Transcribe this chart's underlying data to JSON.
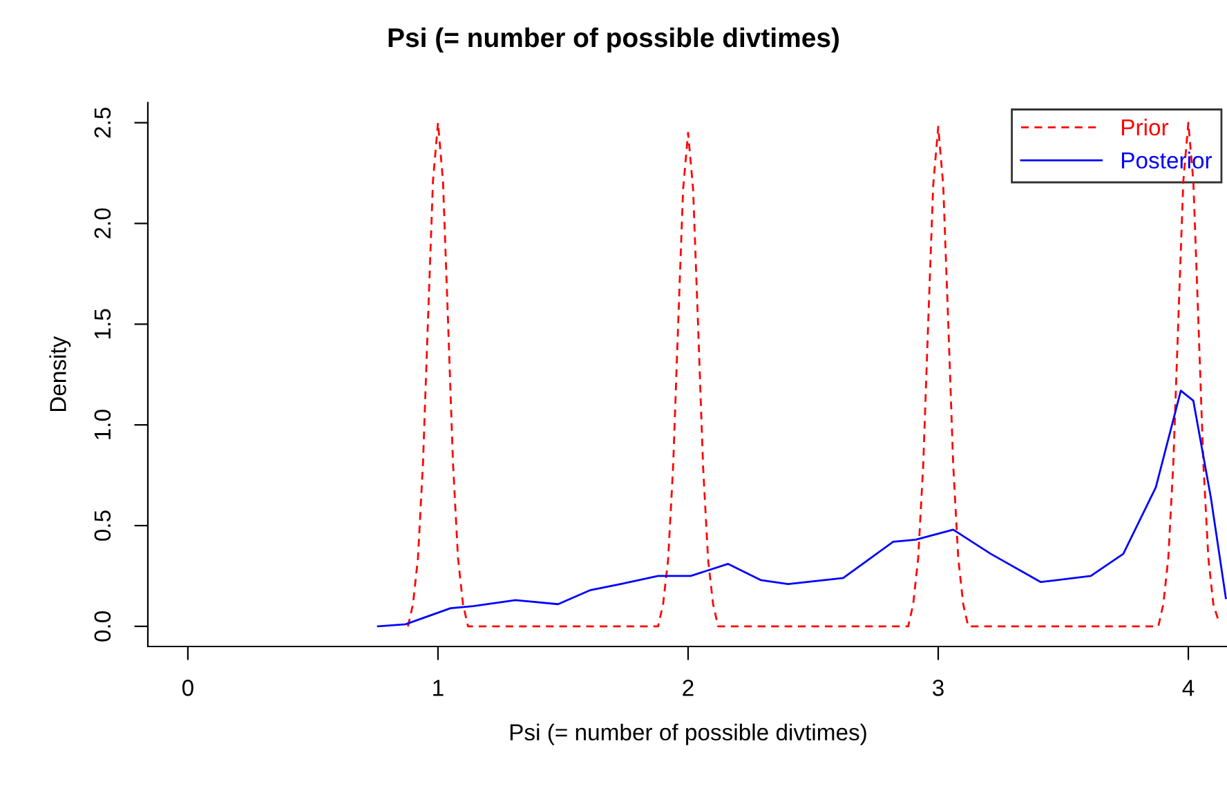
{
  "chart_data": {
    "type": "line",
    "title": "Psi (= number of possible divtimes)",
    "xlabel": "Psi (= number of possible divtimes)",
    "ylabel": "Density",
    "xlim": [
      -0.16,
      4.16
    ],
    "ylim": [
      -0.1,
      2.6
    ],
    "xticks": [
      0,
      1,
      2,
      3,
      4
    ],
    "yticks": [
      {
        "value": 0,
        "label": "0.0"
      },
      {
        "value": 0.5,
        "label": "0.5"
      },
      {
        "value": 1,
        "label": "1.0"
      },
      {
        "value": 1.5,
        "label": "1.5"
      },
      {
        "value": 2,
        "label": "2.0"
      },
      {
        "value": 2.5,
        "label": "2.5"
      }
    ],
    "grid": false,
    "legend": "top right",
    "series": [
      {
        "name": "Prior",
        "color": "#ff0000",
        "line_style": "dashed",
        "x": [
          0.88,
          0.9,
          0.92,
          0.94,
          0.96,
          0.98,
          1.0,
          1.02,
          1.04,
          1.06,
          1.08,
          1.1,
          1.12,
          1.88,
          1.9,
          1.92,
          1.94,
          1.96,
          1.98,
          2.0,
          2.02,
          2.04,
          2.06,
          2.08,
          2.1,
          2.12,
          2.88,
          2.9,
          2.92,
          2.94,
          2.96,
          2.98,
          3.0,
          3.02,
          3.04,
          3.06,
          3.08,
          3.1,
          3.12,
          3.88,
          3.9,
          3.92,
          3.94,
          3.96,
          3.98,
          4.0,
          4.02,
          4.04,
          4.06,
          4.08,
          4.1,
          4.12
        ],
        "values": [
          0,
          0.11,
          0.34,
          0.81,
          1.52,
          2.21,
          2.5,
          2.21,
          1.52,
          0.81,
          0.34,
          0.11,
          0,
          0,
          0.11,
          0.33,
          0.79,
          1.49,
          2.17,
          2.45,
          2.17,
          1.49,
          0.79,
          0.33,
          0.11,
          0,
          0,
          0.11,
          0.34,
          0.8,
          1.51,
          2.19,
          2.48,
          2.19,
          1.51,
          0.8,
          0.34,
          0.11,
          0,
          0,
          0.11,
          0.34,
          0.81,
          1.52,
          2.21,
          2.5,
          2.21,
          1.52,
          0.81,
          0.34,
          0.11,
          0.03
        ]
      },
      {
        "name": "Posterior",
        "color": "#0000ff",
        "line_style": "solid",
        "x": [
          0.76,
          0.87,
          1.05,
          1.14,
          1.31,
          1.48,
          1.61,
          1.73,
          1.88,
          2.01,
          2.16,
          2.29,
          2.4,
          2.62,
          2.82,
          2.91,
          3.06,
          3.21,
          3.41,
          3.61,
          3.74,
          3.87,
          3.97,
          4.02,
          4.09,
          4.15
        ],
        "values": [
          0,
          0.01,
          0.09,
          0.1,
          0.13,
          0.11,
          0.18,
          0.21,
          0.25,
          0.25,
          0.31,
          0.23,
          0.21,
          0.24,
          0.42,
          0.43,
          0.48,
          0.36,
          0.22,
          0.25,
          0.36,
          0.69,
          1.17,
          1.12,
          0.64,
          0.14
        ]
      }
    ]
  }
}
